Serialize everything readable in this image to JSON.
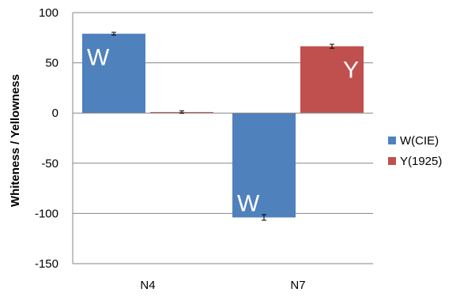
{
  "chart_data": {
    "type": "bar",
    "categories": [
      "N4",
      "N7"
    ],
    "series": [
      {
        "name": "W(CIE)",
        "color": "#4f81bd",
        "values": [
          79,
          -104
        ],
        "errors": [
          0.6,
          2.0
        ],
        "labels": [
          "W",
          "W"
        ]
      },
      {
        "name": "Y(1925)",
        "color": "#c0504d",
        "values": [
          1,
          66.5
        ],
        "errors": [
          0.4,
          1.2
        ],
        "labels": [
          "",
          "Y"
        ]
      }
    ],
    "xlabel": "",
    "ylabel": "Whiteness / Yellowness",
    "ylim": [
      -150,
      100
    ],
    "yticks": [
      100,
      50,
      0,
      -50,
      -100,
      -150
    ],
    "grid": true,
    "legend_position": "right"
  }
}
